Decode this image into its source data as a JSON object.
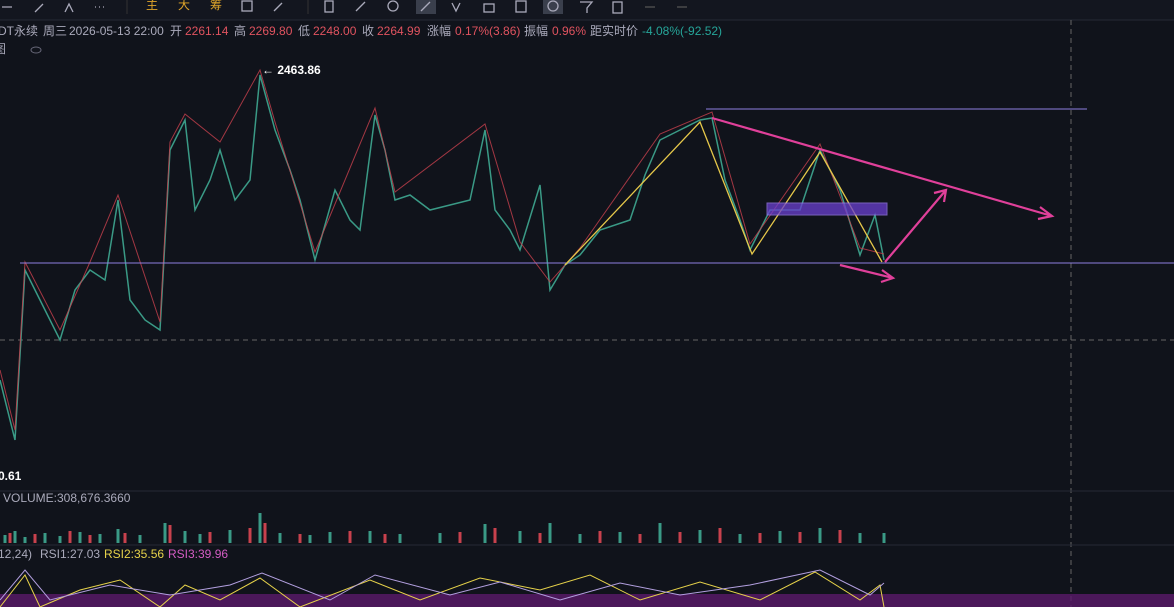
{
  "toolbar": {
    "buttons": [
      "主",
      "大",
      "筹"
    ]
  },
  "info_bar": {
    "symbol": "DT永续",
    "weekday": "周三",
    "datetime": "2026-05-13 22:00",
    "open_label": "开",
    "open": "2261.14",
    "high_label": "高",
    "high": "2269.80",
    "low_label": "低",
    "low": "2248.00",
    "close_label": "收",
    "close": "2264.99",
    "change_label": "涨幅",
    "change": "0.17%(3.86)",
    "amplitude_label": "振幅",
    "amplitude": "0.96%",
    "distance_label": "距实时价",
    "distance": "-4.08%(-92.52)",
    "sub_label": "图"
  },
  "price_labels": {
    "high_marker": "← 2463.86",
    "low_marker": "0.61"
  },
  "volume_panel": {
    "label": "VOLUME:308,676.3660"
  },
  "rsi_panel": {
    "params": "12,24)",
    "rsi1": "RSI1:27.03",
    "rsi2": "RSI2:35.56",
    "rsi3": "RSI3:39.96"
  }
}
